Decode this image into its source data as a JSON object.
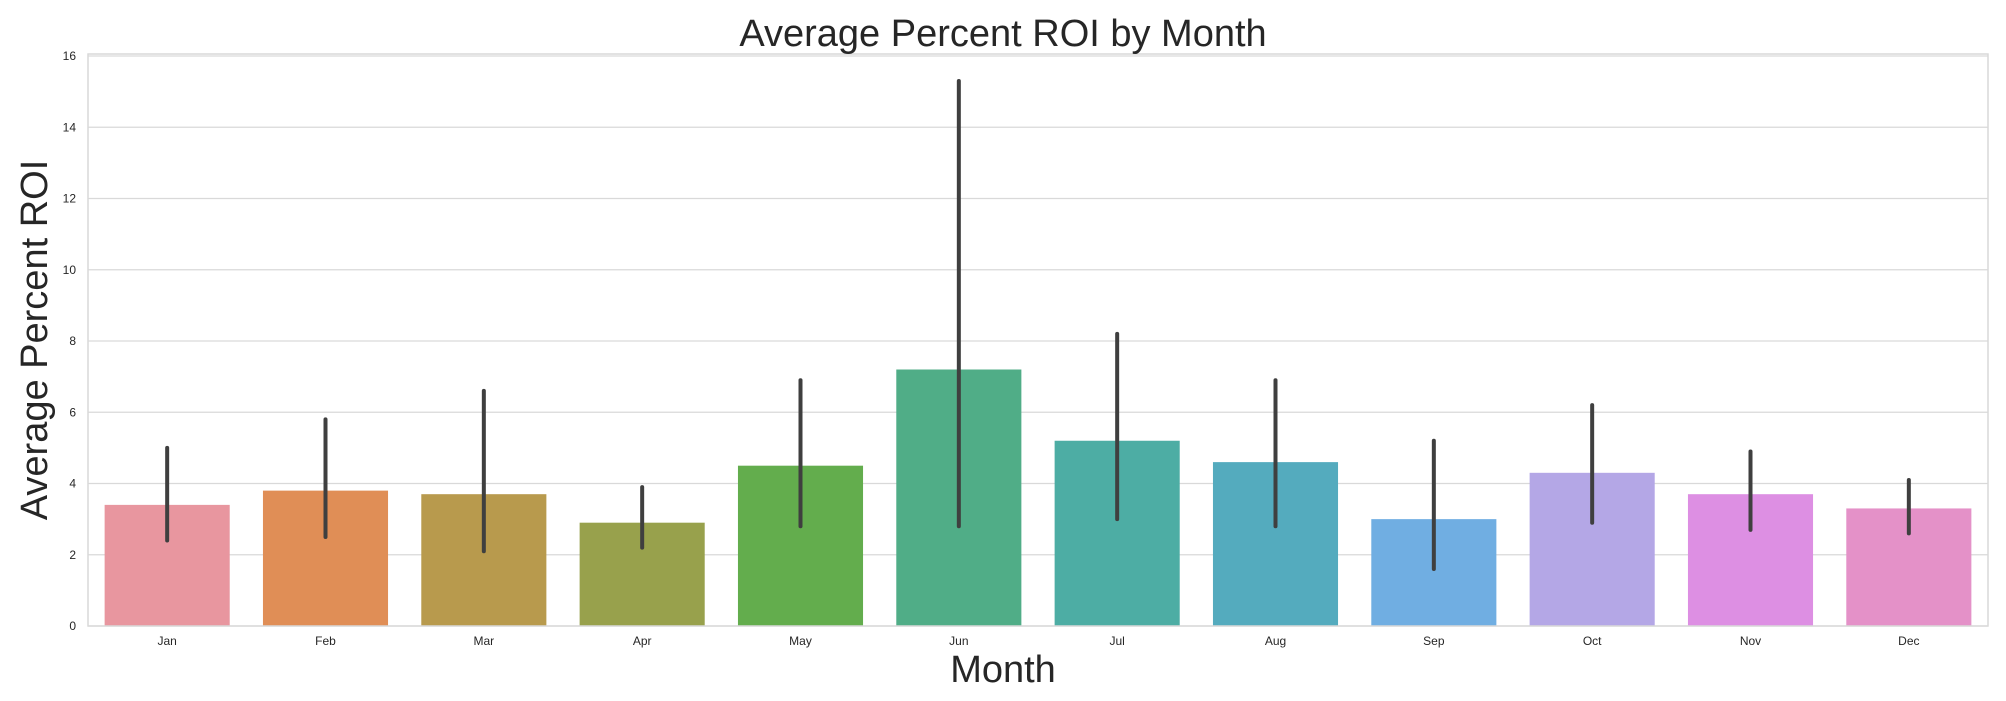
{
  "chart_data": {
    "type": "bar",
    "title": "Average Percent ROI by Month",
    "xlabel": "Month",
    "ylabel": "Average Percent ROI",
    "categories": [
      "Jan",
      "Feb",
      "Mar",
      "Apr",
      "May",
      "Jun",
      "Jul",
      "Aug",
      "Sep",
      "Oct",
      "Nov",
      "Dec"
    ],
    "values": [
      3.4,
      3.8,
      3.7,
      2.9,
      4.5,
      7.2,
      5.2,
      4.6,
      3.0,
      4.3,
      3.7,
      3.3
    ],
    "error_low": [
      2.4,
      2.5,
      2.1,
      2.2,
      2.8,
      2.8,
      3.0,
      2.8,
      1.6,
      2.9,
      2.7,
      2.6
    ],
    "error_high": [
      5.0,
      5.8,
      6.6,
      3.9,
      6.9,
      15.3,
      8.2,
      6.9,
      5.2,
      6.2,
      4.9,
      4.1
    ],
    "colors": [
      "#e8969f",
      "#e08e56",
      "#b89a4d",
      "#98a14c",
      "#63ad4d",
      "#50ad87",
      "#4dada4",
      "#54abbe",
      "#70aee2",
      "#b4a7e6",
      "#dd8fe3",
      "#e491c8"
    ],
    "ylim": [
      0,
      16
    ],
    "yticks": [
      "0",
      "2",
      "4",
      "6",
      "8",
      "10",
      "12",
      "14",
      "16"
    ],
    "grid": true,
    "legend": "none"
  }
}
